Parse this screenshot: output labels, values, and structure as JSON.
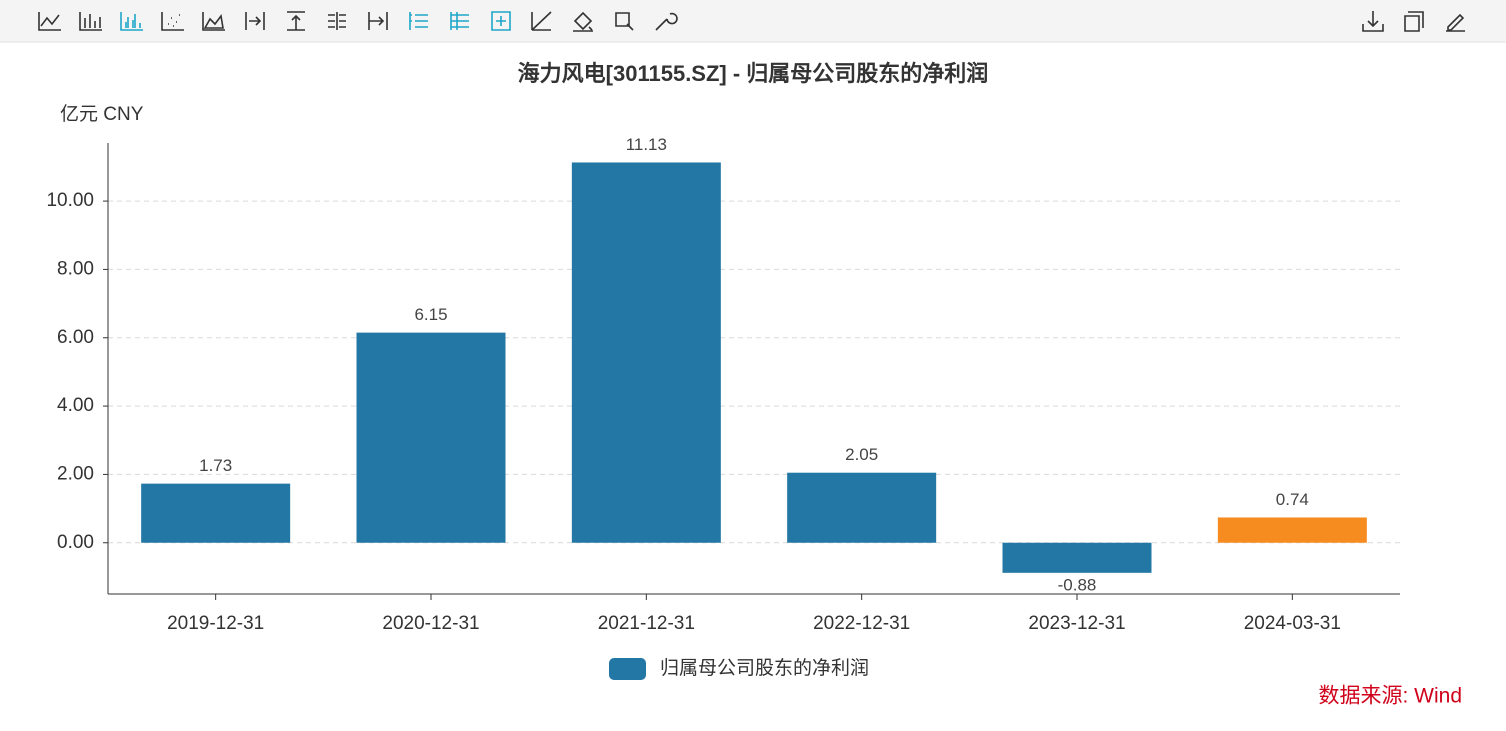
{
  "chart_data": {
    "type": "bar",
    "title": "海力风电[301155.SZ] - 归属母公司股东的净利润",
    "y_axis_label": "亿元  CNY",
    "categories": [
      "2019-12-31",
      "2020-12-31",
      "2021-12-31",
      "2022-12-31",
      "2023-12-31",
      "2024-03-31"
    ],
    "series": [
      {
        "name": "归属母公司股东的净利润",
        "color": "#2277a4",
        "colors": [
          "#2277a4",
          "#2277a4",
          "#2277a4",
          "#2277a4",
          "#2277a4",
          "#f68b1f"
        ],
        "values": [
          1.73,
          6.15,
          11.13,
          2.05,
          -0.88,
          0.74
        ]
      }
    ],
    "ylim": [
      -1.5,
      11.7
    ],
    "yticks": [
      {
        "value": 0,
        "label": "0.00"
      },
      {
        "value": 2,
        "label": "2.00"
      },
      {
        "value": 4,
        "label": "4.00"
      },
      {
        "value": 6,
        "label": "6.00"
      },
      {
        "value": 8,
        "label": "8.00"
      },
      {
        "value": 10,
        "label": "10.00"
      }
    ],
    "grid": true,
    "source": "数据来源: Wind"
  }
}
